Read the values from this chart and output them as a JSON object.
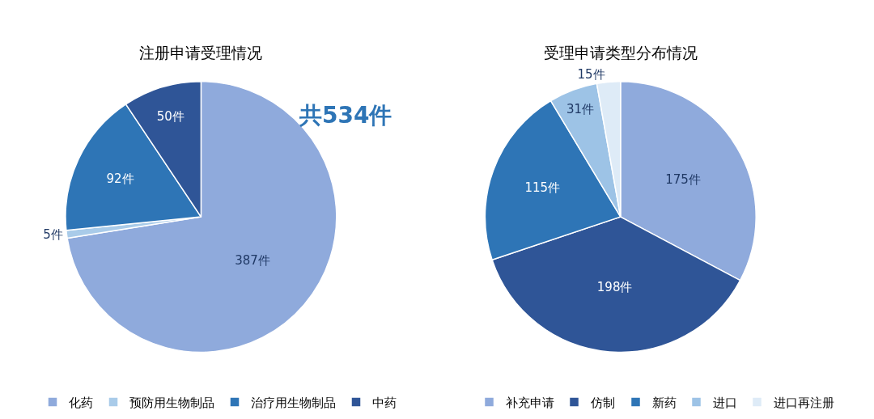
{
  "chart_data": [
    {
      "type": "pie",
      "title": "注册申请受理情况",
      "categories": [
        "化药",
        "预防用生物制品",
        "治疗用生物制品",
        "中药"
      ],
      "values": [
        387,
        5,
        92,
        50
      ],
      "colors": [
        "#8faadc",
        "#a9cbe9",
        "#2e75b6",
        "#2f5597"
      ],
      "value_labels": [
        "387件",
        "5件",
        "92件",
        "50件"
      ],
      "legend": "bottom",
      "annotations": [
        "共534件"
      ]
    },
    {
      "type": "pie",
      "title": "受理申请类型分布情况",
      "categories": [
        "补充申请",
        "仿制",
        "新药",
        "进口",
        "进口再注册"
      ],
      "values": [
        175,
        198,
        115,
        31,
        15
      ],
      "colors": [
        "#8faadc",
        "#2f5597",
        "#2e75b6",
        "#9dc3e6",
        "#deebf7"
      ],
      "value_labels": [
        "175件",
        "198件",
        "115件",
        "31件",
        "15件"
      ],
      "legend": "bottom"
    }
  ]
}
